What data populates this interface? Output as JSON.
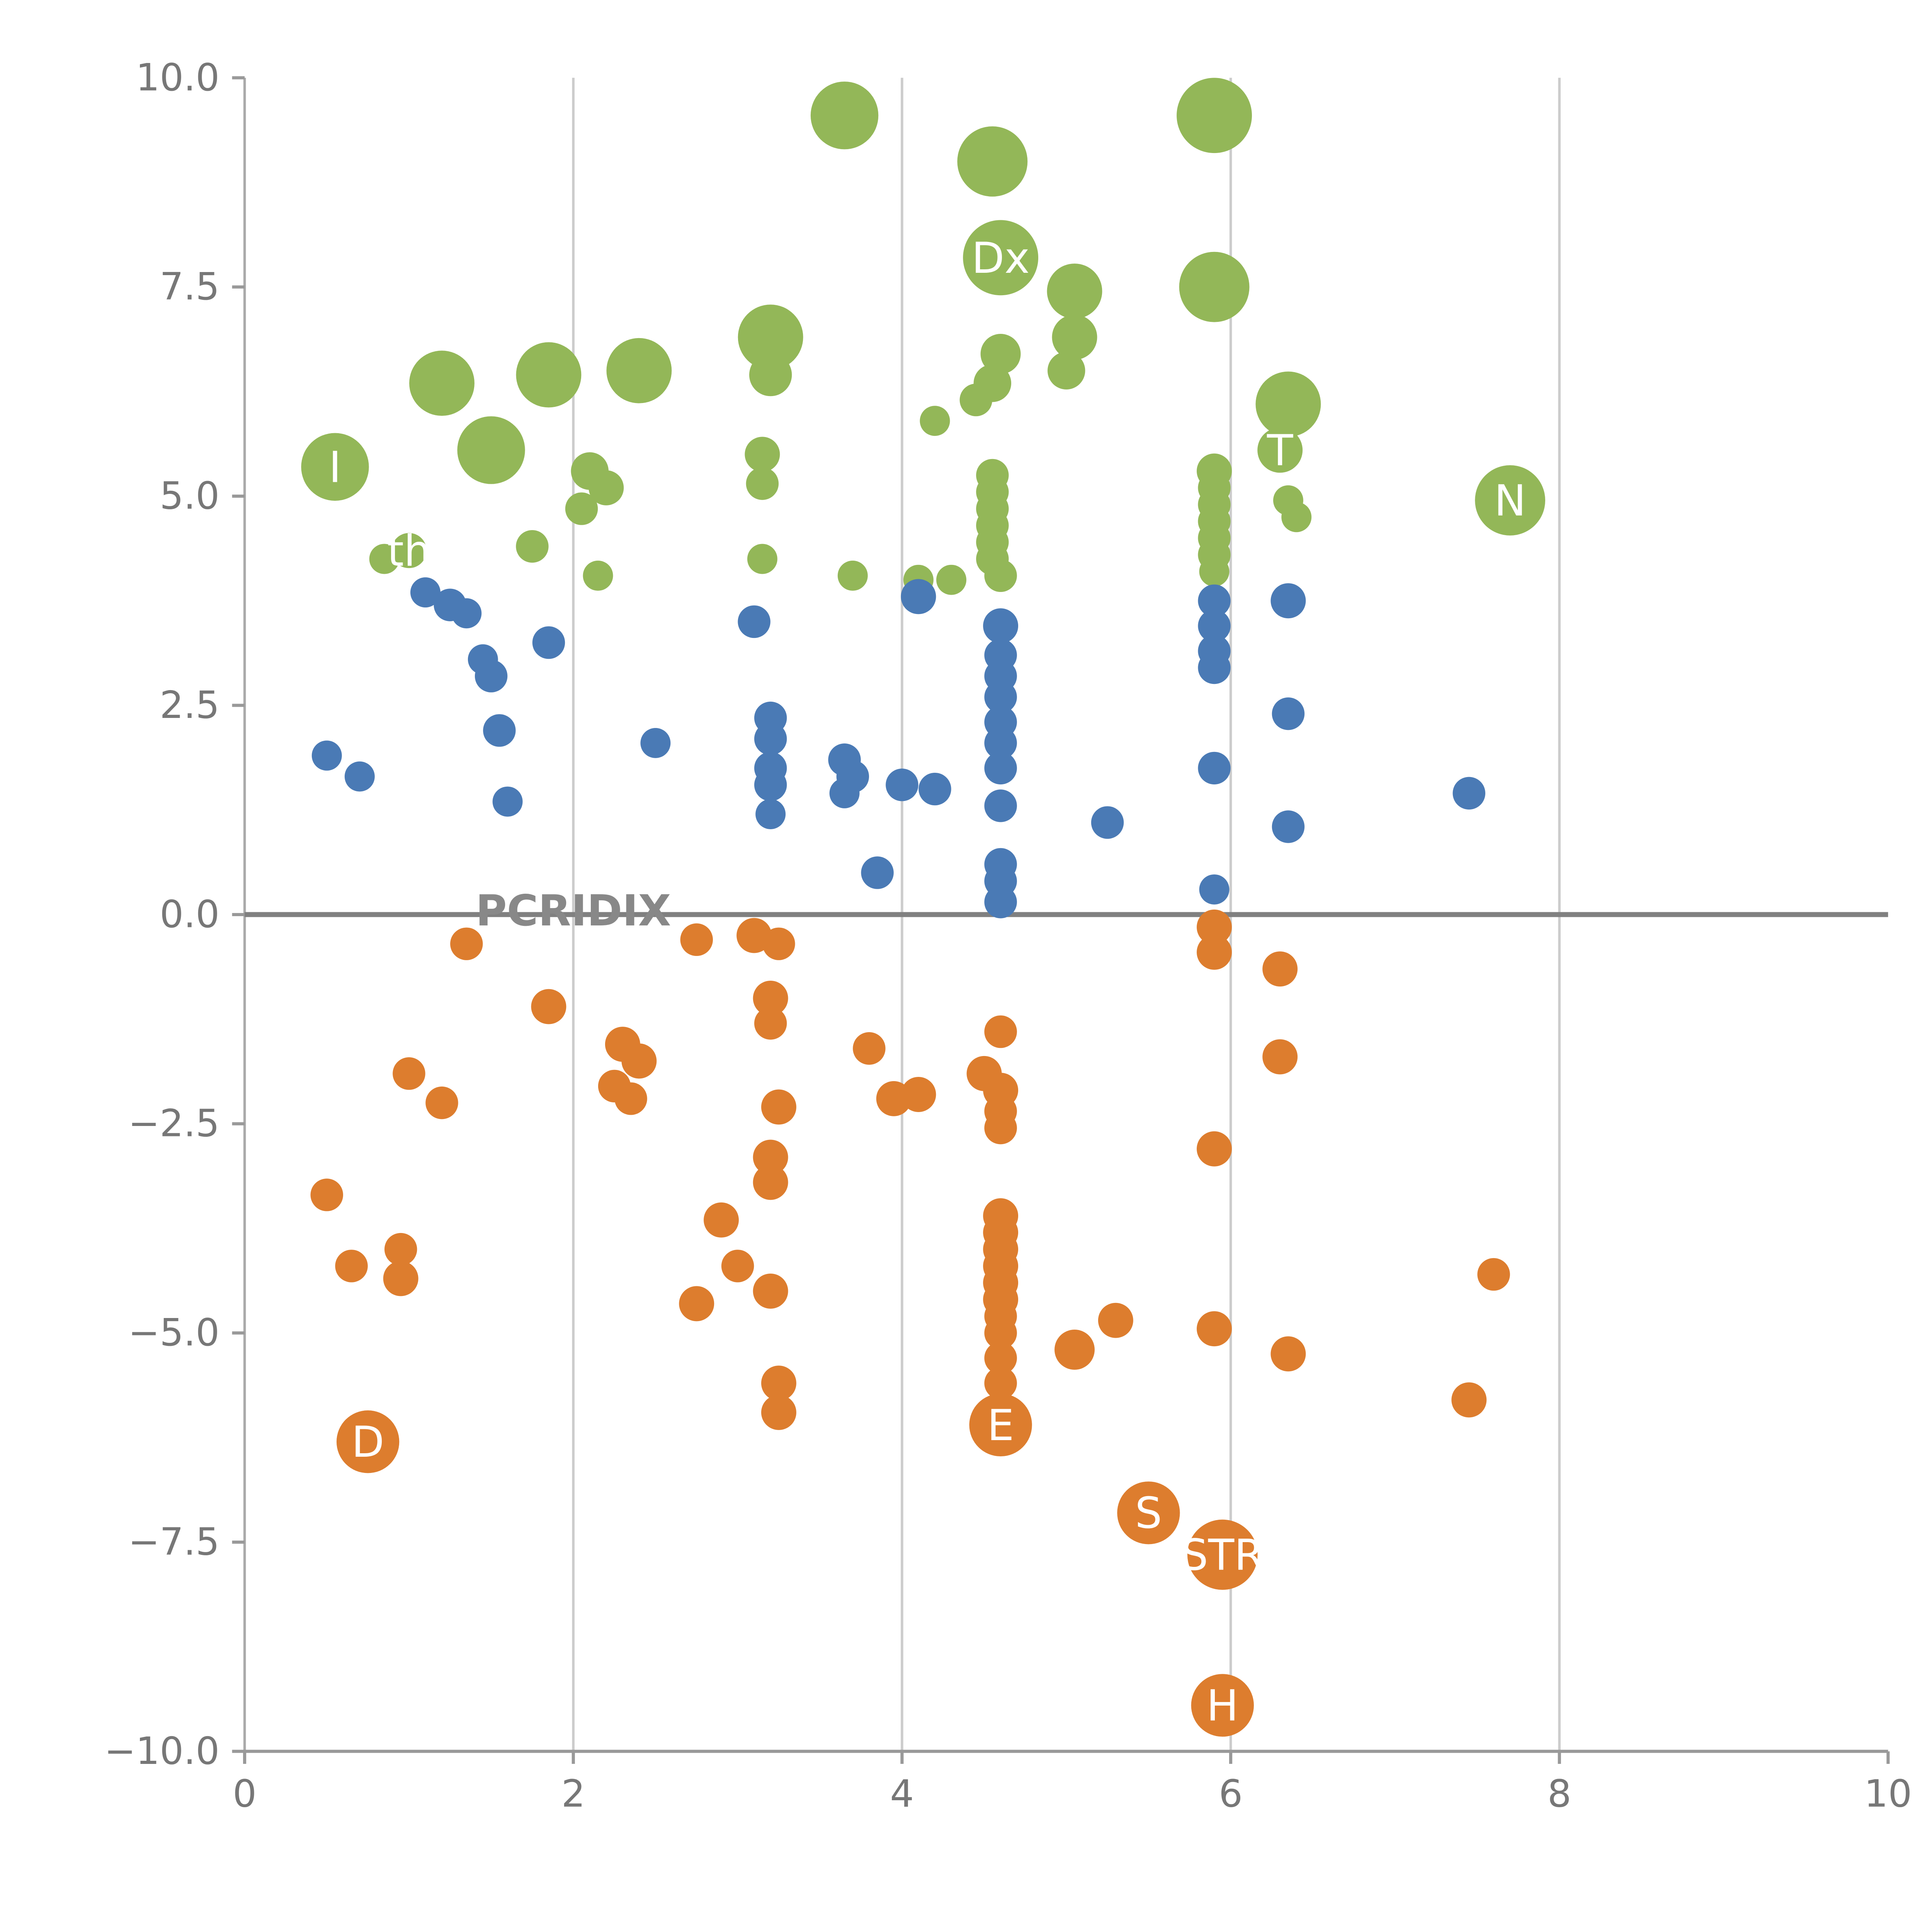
{
  "figure": {
    "background": "#ffffff"
  },
  "chart_data": {
    "type": "scatter",
    "title": "",
    "xlabel": "",
    "ylabel": "",
    "xlim": [
      0,
      10
    ],
    "ylim": [
      -10,
      10
    ],
    "grid": "vertical-only",
    "zero_line": true,
    "legend_position": "none",
    "xticks": [
      {
        "v": 0,
        "label": "0"
      },
      {
        "v": 2,
        "label": "2"
      },
      {
        "v": 4,
        "label": "4"
      },
      {
        "v": 6,
        "label": "6"
      },
      {
        "v": 8,
        "label": "8"
      },
      {
        "v": 10,
        "label": "10"
      }
    ],
    "yticks": [
      {
        "v": -10,
        "label": "−10.0"
      },
      {
        "v": -7.5,
        "label": "−7.5"
      },
      {
        "v": -5,
        "label": "−5.0"
      },
      {
        "v": -2.5,
        "label": "−2.5"
      },
      {
        "v": 0,
        "label": "0.0"
      },
      {
        "v": 2.5,
        "label": "2.5"
      },
      {
        "v": 5,
        "label": "5.0"
      },
      {
        "v": 7.5,
        "label": "7.5"
      },
      {
        "v": 10,
        "label": "10.0"
      }
    ],
    "style": {
      "grid_color": "#cccccc",
      "spine_color": "#aaaaaa",
      "axis_color": "#999999",
      "zero_line_color": "#808080",
      "tick_label_color": "#777777",
      "point_label_color": "#ffffff"
    },
    "series": [
      {
        "name": "green",
        "color": "#93b758",
        "points": [
          [
            3.65,
            9.55,
            27
          ],
          [
            4.55,
            9.0,
            28
          ],
          [
            5.9,
            9.55,
            30
          ],
          [
            4.6,
            7.85,
            30,
            "Dx"
          ],
          [
            5.9,
            7.5,
            28
          ],
          [
            5.05,
            7.45,
            22
          ],
          [
            5.05,
            6.9,
            18
          ],
          [
            3.2,
            6.9,
            26
          ],
          [
            3.2,
            6.45,
            17
          ],
          [
            1.2,
            6.35,
            26
          ],
          [
            1.85,
            6.45,
            26
          ],
          [
            2.4,
            6.5,
            26
          ],
          [
            4.6,
            6.7,
            16
          ],
          [
            4.55,
            6.35,
            15
          ],
          [
            4.45,
            6.15,
            13
          ],
          [
            4.2,
            5.9,
            12
          ],
          [
            5.0,
            6.5,
            15
          ],
          [
            6.35,
            6.1,
            26
          ],
          [
            6.3,
            5.55,
            18,
            "T"
          ],
          [
            0.55,
            5.35,
            27,
            "I"
          ],
          [
            1.5,
            5.55,
            27
          ],
          [
            2.1,
            5.3,
            15
          ],
          [
            2.2,
            5.1,
            14
          ],
          [
            3.15,
            5.5,
            14
          ],
          [
            3.15,
            5.15,
            13
          ],
          [
            5.9,
            5.3,
            14
          ],
          [
            5.9,
            5.1,
            13
          ],
          [
            5.9,
            4.9,
            13
          ],
          [
            5.9,
            4.7,
            13
          ],
          [
            5.9,
            4.5,
            13
          ],
          [
            5.9,
            4.3,
            13
          ],
          [
            5.9,
            4.1,
            12
          ],
          [
            4.55,
            5.25,
            13
          ],
          [
            4.55,
            5.05,
            13
          ],
          [
            4.55,
            4.85,
            13
          ],
          [
            4.55,
            4.65,
            13
          ],
          [
            4.55,
            4.45,
            13
          ],
          [
            4.55,
            4.25,
            13
          ],
          [
            4.6,
            4.05,
            13
          ],
          [
            7.7,
            4.95,
            28,
            "N"
          ],
          [
            1.0,
            4.35,
            14,
            "th"
          ],
          [
            0.85,
            4.25,
            12
          ],
          [
            1.75,
            4.4,
            13
          ],
          [
            2.05,
            4.85,
            13
          ],
          [
            2.15,
            4.05,
            12
          ],
          [
            3.15,
            4.25,
            12
          ],
          [
            3.7,
            4.05,
            12
          ],
          [
            4.1,
            4.0,
            12
          ],
          [
            4.3,
            4.0,
            12
          ],
          [
            6.4,
            4.75,
            12
          ],
          [
            6.35,
            4.95,
            12
          ]
        ]
      },
      {
        "name": "blue",
        "color": "#4a7ab5",
        "points": [
          [
            0.5,
            1.9,
            12
          ],
          [
            0.7,
            1.65,
            12
          ],
          [
            1.1,
            3.85,
            12
          ],
          [
            1.25,
            3.7,
            13
          ],
          [
            1.35,
            3.6,
            12
          ],
          [
            1.45,
            3.05,
            12
          ],
          [
            1.5,
            2.85,
            13
          ],
          [
            1.85,
            3.25,
            13
          ],
          [
            1.55,
            2.2,
            13
          ],
          [
            1.6,
            1.35,
            12
          ],
          [
            2.5,
            2.05,
            12
          ],
          [
            3.1,
            3.5,
            13
          ],
          [
            3.2,
            2.35,
            13
          ],
          [
            3.2,
            2.1,
            13
          ],
          [
            3.2,
            1.75,
            13
          ],
          [
            3.2,
            1.55,
            13
          ],
          [
            3.2,
            1.2,
            12
          ],
          [
            3.65,
            1.85,
            13
          ],
          [
            3.7,
            1.65,
            13
          ],
          [
            3.65,
            1.45,
            12
          ],
          [
            4.0,
            1.55,
            13
          ],
          [
            4.2,
            1.5,
            13
          ],
          [
            3.85,
            0.5,
            13
          ],
          [
            4.1,
            3.8,
            14
          ],
          [
            4.6,
            3.45,
            14
          ],
          [
            4.6,
            3.1,
            13
          ],
          [
            4.6,
            2.85,
            13
          ],
          [
            4.6,
            2.6,
            13
          ],
          [
            4.6,
            2.3,
            13
          ],
          [
            4.6,
            2.05,
            13
          ],
          [
            4.6,
            1.75,
            13
          ],
          [
            4.6,
            1.3,
            13
          ],
          [
            4.6,
            0.6,
            13
          ],
          [
            4.6,
            0.4,
            13
          ],
          [
            4.6,
            0.15,
            13
          ],
          [
            5.25,
            1.1,
            13
          ],
          [
            5.9,
            3.75,
            13
          ],
          [
            5.9,
            3.45,
            13
          ],
          [
            5.9,
            3.15,
            13
          ],
          [
            5.9,
            2.95,
            13
          ],
          [
            5.9,
            1.75,
            13
          ],
          [
            5.9,
            0.3,
            12
          ],
          [
            6.35,
            3.75,
            14
          ],
          [
            6.35,
            2.4,
            13
          ],
          [
            6.35,
            1.05,
            13
          ],
          [
            7.45,
            1.45,
            13
          ]
        ]
      },
      {
        "name": "orange",
        "color": "#dd7d2e",
        "points": [
          [
            1.35,
            -0.35,
            13
          ],
          [
            2.75,
            -0.3,
            13
          ],
          [
            3.1,
            -0.25,
            14
          ],
          [
            3.25,
            -0.35,
            13
          ],
          [
            1.85,
            -1.1,
            14
          ],
          [
            3.2,
            -1.0,
            14
          ],
          [
            3.2,
            -1.3,
            13
          ],
          [
            2.3,
            -1.55,
            14
          ],
          [
            2.4,
            -1.75,
            14
          ],
          [
            2.25,
            -2.05,
            13
          ],
          [
            2.35,
            -2.2,
            13
          ],
          [
            1.0,
            -1.9,
            13
          ],
          [
            1.2,
            -2.25,
            13
          ],
          [
            3.8,
            -1.6,
            13
          ],
          [
            4.6,
            -1.4,
            13
          ],
          [
            4.5,
            -1.9,
            14
          ],
          [
            4.6,
            -2.1,
            14
          ],
          [
            4.6,
            -2.35,
            13
          ],
          [
            4.6,
            -2.55,
            13
          ],
          [
            3.95,
            -2.2,
            14
          ],
          [
            4.1,
            -2.15,
            14
          ],
          [
            3.25,
            -2.3,
            14
          ],
          [
            3.2,
            -2.9,
            14
          ],
          [
            3.2,
            -3.2,
            14
          ],
          [
            0.5,
            -3.35,
            13
          ],
          [
            0.65,
            -4.2,
            13
          ],
          [
            0.95,
            -4.0,
            13
          ],
          [
            0.95,
            -4.35,
            14
          ],
          [
            2.9,
            -3.65,
            14
          ],
          [
            3.0,
            -4.2,
            13
          ],
          [
            2.75,
            -4.65,
            14
          ],
          [
            3.2,
            -4.5,
            14
          ],
          [
            4.6,
            -3.6,
            14
          ],
          [
            4.6,
            -3.8,
            14
          ],
          [
            4.6,
            -4.0,
            14
          ],
          [
            4.6,
            -4.2,
            14
          ],
          [
            4.6,
            -4.4,
            14
          ],
          [
            4.6,
            -4.6,
            14
          ],
          [
            4.6,
            -4.8,
            13
          ],
          [
            4.6,
            -5.0,
            13
          ],
          [
            4.6,
            -5.3,
            13
          ],
          [
            4.6,
            -5.6,
            13
          ],
          [
            4.6,
            -6.1,
            25,
            "E"
          ],
          [
            3.25,
            -5.6,
            14
          ],
          [
            3.25,
            -5.95,
            14
          ],
          [
            5.05,
            -5.2,
            16
          ],
          [
            5.3,
            -4.85,
            14
          ],
          [
            5.9,
            -0.15,
            14
          ],
          [
            5.9,
            -0.45,
            14
          ],
          [
            6.3,
            -0.65,
            14
          ],
          [
            6.3,
            -1.7,
            14
          ],
          [
            5.9,
            -2.8,
            14
          ],
          [
            5.9,
            -4.95,
            14
          ],
          [
            6.35,
            -5.25,
            14
          ],
          [
            7.45,
            -5.8,
            14
          ],
          [
            7.6,
            -4.3,
            13
          ],
          [
            0.75,
            -6.3,
            25,
            "D"
          ],
          [
            5.5,
            -7.15,
            25,
            "S"
          ],
          [
            5.95,
            -7.65,
            28,
            "STR"
          ],
          [
            5.95,
            -9.45,
            25,
            "H"
          ]
        ]
      }
    ],
    "annotations": [
      {
        "x": 2.0,
        "y": 0.05,
        "text": "PCRIDIX",
        "color": "#888888",
        "size": 34
      }
    ]
  }
}
